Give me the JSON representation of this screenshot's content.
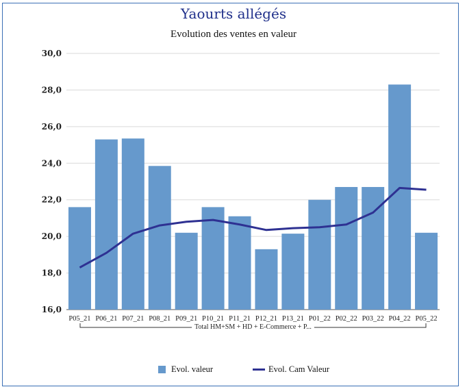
{
  "chart": {
    "title": "Yaourts allégés",
    "subtitle": "Evolution des ventes en valeur",
    "group_label": "Total HM+SM + HD + E-Commerce + P...",
    "legend": {
      "bar_label": "Evol.  valeur",
      "line_label": "Evol. Cam Valeur"
    }
  },
  "colors": {
    "bar": "#6699cc",
    "line": "#2e3192",
    "grid": "#d9d9d9",
    "frame": "#3a6fb5"
  },
  "chart_data": {
    "type": "bar",
    "title": "Yaourts allégés",
    "subtitle": "Evolution des ventes en valeur",
    "categories": [
      "P05_21",
      "P06_21",
      "P07_21",
      "P08_21",
      "P09_21",
      "P10_21",
      "P11_21",
      "P12_21",
      "P13_21",
      "P01_22",
      "P02_22",
      "P03_22",
      "P04_22",
      "P05_22"
    ],
    "series": [
      {
        "name": "Evol.  valeur",
        "type": "bar",
        "values": [
          21.6,
          25.3,
          25.35,
          23.85,
          20.2,
          21.6,
          21.1,
          19.3,
          20.15,
          22.0,
          22.7,
          22.7,
          28.3,
          20.2
        ]
      },
      {
        "name": "Evol. Cam Valeur",
        "type": "line",
        "values": [
          18.3,
          19.1,
          20.15,
          20.6,
          20.8,
          20.9,
          20.65,
          20.35,
          20.45,
          20.5,
          20.65,
          21.3,
          22.65,
          22.55
        ]
      }
    ],
    "ylim": [
      16,
      30
    ],
    "yticks": [
      "16,0",
      "18,0",
      "20,0",
      "22,0",
      "24,0",
      "26,0",
      "28,0",
      "30,0"
    ],
    "grid": true,
    "legend_position": "bottom"
  }
}
